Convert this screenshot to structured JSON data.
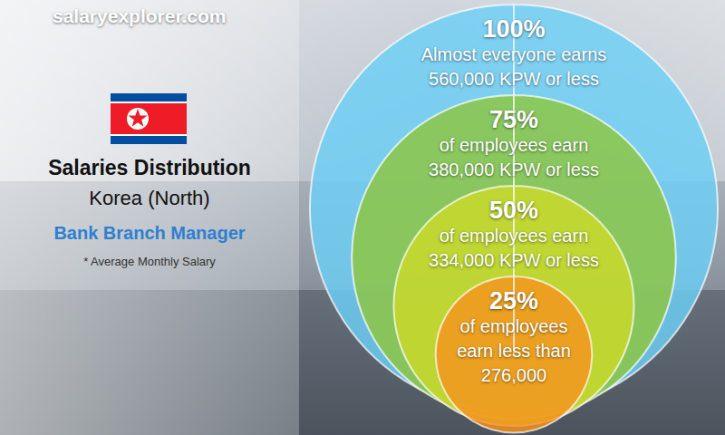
{
  "chart_data": {
    "type": "nested_circles",
    "site": "salaryexplorer.com",
    "title": "Salaries Distribution",
    "subtitle": "Korea (North)",
    "job": "Bank Branch Manager",
    "note": "* Average Monthly Salary",
    "data_labels": true,
    "series": [
      {
        "percent": 100,
        "percent_label": "100%",
        "color": "#6ccff6",
        "lines": [
          "Almost everyone earns"
        ],
        "value": 560000,
        "value_label": "560,000 KPW or less"
      },
      {
        "percent": 75,
        "percent_label": "75%",
        "color": "#8dc63f",
        "lines": [
          "of employees earn"
        ],
        "value": 380000,
        "value_label": "380,000 KPW or less"
      },
      {
        "percent": 50,
        "percent_label": "50%",
        "color": "#cbd92a",
        "lines": [
          "of employees earn"
        ],
        "value": 334000,
        "value_label": "334,000 KPW or less"
      },
      {
        "percent": 25,
        "percent_label": "25%",
        "color": "#f7941d",
        "lines": [
          "of employees",
          "earn less than"
        ],
        "value": 276000,
        "value_label": "276,000"
      }
    ]
  }
}
